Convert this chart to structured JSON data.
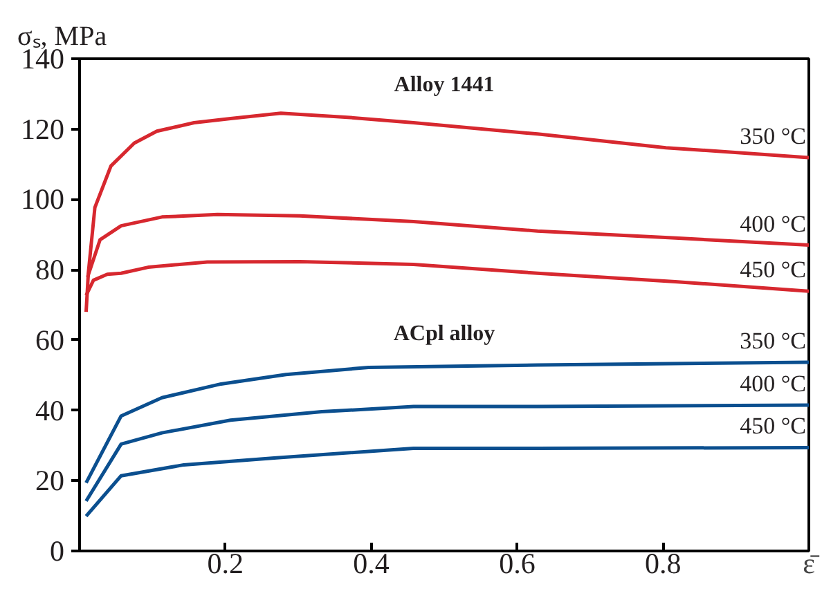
{
  "chart_data": {
    "type": "line",
    "xlabel": "ε̄",
    "ylabel": "σₛ, MPa",
    "xlim": [
      0,
      1
    ],
    "ylim": [
      0,
      140
    ],
    "xticks": [
      {
        "value": 0,
        "label": null
      },
      0.2,
      0.4,
      0.6,
      0.8,
      {
        "value": 1,
        "label": null
      }
    ],
    "yticks": [
      0,
      20,
      40,
      60,
      80,
      100,
      120,
      140
    ],
    "grid": false,
    "marker": "none",
    "line_style": "solid",
    "annotations": [
      "Alloy 1441",
      "ACpl alloy"
    ],
    "series": [
      {
        "name": "350 °C",
        "color": "#d7282f",
        "x": [
          0.009,
          0.012,
          0.021,
          0.043,
          0.075,
          0.106,
          0.157,
          0.207,
          0.276,
          0.364,
          0.458,
          0.628,
          0.804,
          1.0
        ],
        "values": [
          68,
          79,
          97.7,
          109.5,
          116,
          119.4,
          121.8,
          123,
          124.5,
          123.4,
          121.8,
          118.6,
          114.7,
          111.9
        ]
      },
      {
        "name": "400 °C",
        "color": "#d7282f",
        "x": [
          0.011,
          0.028,
          0.057,
          0.113,
          0.189,
          0.302,
          0.458,
          0.628,
          0.817,
          1.0
        ],
        "values": [
          77.9,
          88.5,
          92.5,
          95,
          95.7,
          95.3,
          93.7,
          91,
          89,
          87
        ]
      },
      {
        "name": "450 °C",
        "color": "#d7282f",
        "x": [
          0.009,
          0.019,
          0.038,
          0.057,
          0.094,
          0.175,
          0.302,
          0.458,
          0.628,
          0.817,
          1.0
        ],
        "values": [
          72.7,
          77,
          78.7,
          79,
          80.7,
          82.2,
          82.3,
          81.5,
          79,
          76.6,
          73.9
        ]
      },
      {
        "name": "350 °C",
        "color": "#0b4f8f",
        "x": [
          0.009,
          0.057,
          0.113,
          0.194,
          0.283,
          0.396,
          0.628,
          1.0
        ],
        "values": [
          19.4,
          38.4,
          43.6,
          47.5,
          50.2,
          52.2,
          52.9,
          53.7
        ]
      },
      {
        "name": "400 °C",
        "color": "#0b4f8f",
        "x": [
          0.009,
          0.057,
          0.113,
          0.207,
          0.332,
          0.458,
          0.628,
          1.0
        ],
        "values": [
          14.2,
          30.4,
          33.6,
          37.2,
          39.6,
          41.1,
          41.1,
          41.5
        ]
      },
      {
        "name": "450 °C",
        "color": "#0b4f8f",
        "x": [
          0.009,
          0.057,
          0.143,
          0.27,
          0.458,
          0.628,
          1.0
        ],
        "values": [
          9.9,
          21.4,
          24.5,
          26.5,
          29.2,
          29.2,
          29.4
        ]
      }
    ]
  }
}
